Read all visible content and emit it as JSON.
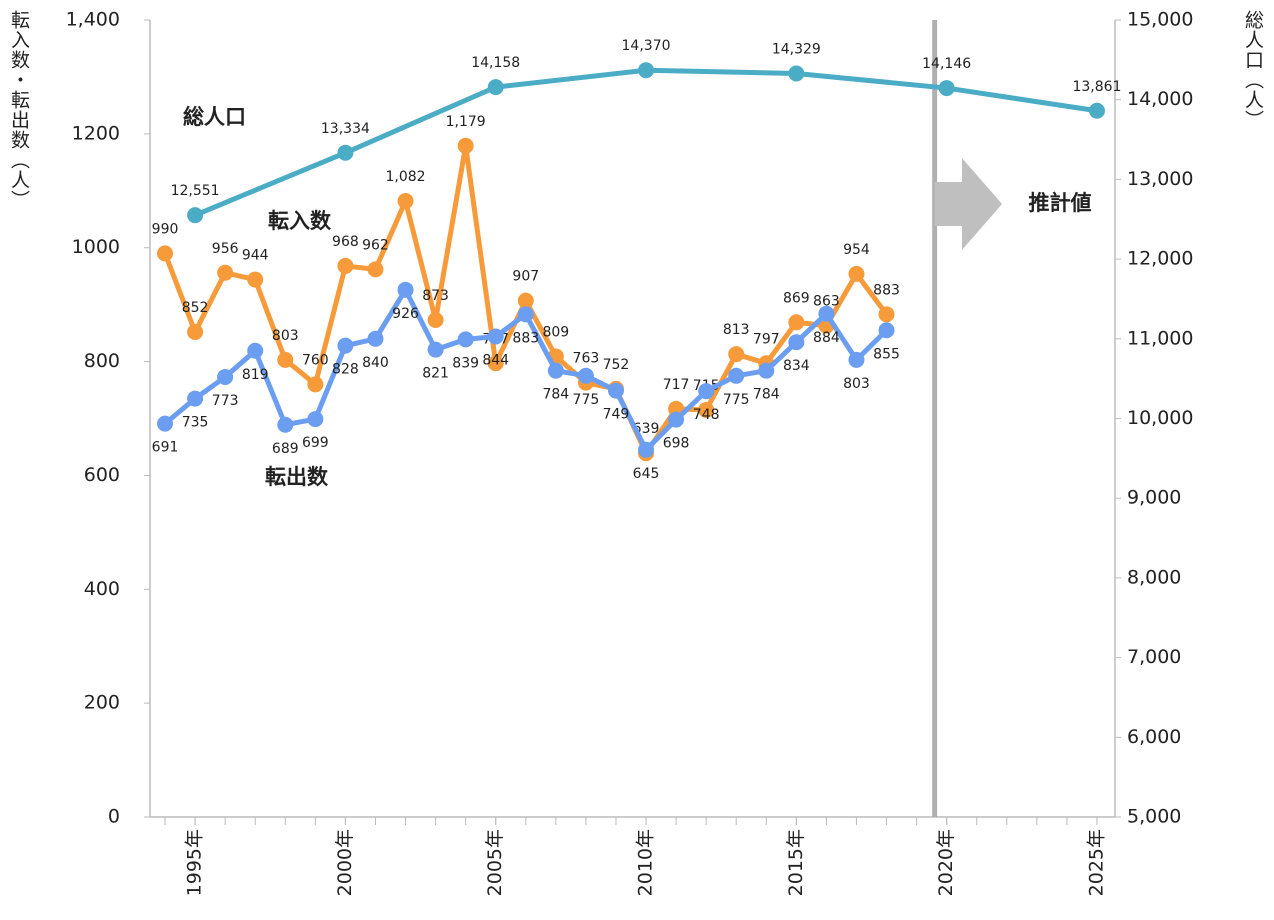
{
  "chart_data": {
    "type": "line",
    "y_label": "転入数・転出数（人）",
    "y2_label": "総人口（人）",
    "xlim": [
      1993.5,
      2025.6
    ],
    "xticks": [
      {
        "value": 1995,
        "label": "1995年"
      },
      {
        "value": 2000,
        "label": "2000年"
      },
      {
        "value": 2005,
        "label": "2005年"
      },
      {
        "value": 2010,
        "label": "2010年"
      },
      {
        "value": 2015,
        "label": "2015年"
      },
      {
        "value": 2020,
        "label": "2020年"
      },
      {
        "value": 2025,
        "label": "2025年"
      }
    ],
    "ylim": [
      0,
      1400
    ],
    "yticks": [
      0,
      200,
      400,
      600,
      800,
      1000,
      1200,
      {
        "value": 1400,
        "label": "1,400"
      }
    ],
    "y2lim": [
      5000,
      15000
    ],
    "y2ticks": [
      {
        "value": 5000,
        "label": "5,000"
      },
      {
        "value": 6000,
        "label": "6,000"
      },
      {
        "value": 7000,
        "label": "7,000"
      },
      {
        "value": 8000,
        "label": "8,000"
      },
      {
        "value": 9000,
        "label": "9,000"
      },
      {
        "value": 10000,
        "label": "10,000"
      },
      {
        "value": 11000,
        "label": "11,000"
      },
      {
        "value": 12000,
        "label": "12,000"
      },
      {
        "value": 13000,
        "label": "13,000"
      },
      {
        "value": 14000,
        "label": "14,000"
      },
      {
        "value": 15000,
        "label": "15,000"
      }
    ],
    "estimate_label": "推計値",
    "series": [
      {
        "name": "総人口",
        "color": "#4bacc6",
        "axis": "y2",
        "x": [
          1995,
          2000,
          2005,
          2010,
          2015,
          2020,
          2025
        ],
        "values": [
          12551,
          13334,
          14158,
          14370,
          14329,
          14146,
          13861
        ],
        "value_labels": [
          "12,551",
          "13,334",
          "14,158",
          "14,370",
          "14,329",
          "14,146",
          "13,861"
        ]
      },
      {
        "name": "転入数",
        "color": "#f79a3a",
        "x": [
          1994,
          1995,
          1996,
          1997,
          1998,
          1999,
          2000,
          2001,
          2002,
          2003,
          2004,
          2005,
          2006,
          2007,
          2008,
          2009,
          2010,
          2011,
          2012,
          2013,
          2014,
          2015,
          2016,
          2017,
          2018
        ],
        "values": [
          990,
          852,
          956,
          944,
          803,
          760,
          968,
          962,
          1082,
          873,
          1179,
          797,
          907,
          809,
          763,
          752,
          639,
          717,
          715,
          813,
          797,
          869,
          863,
          954,
          883
        ],
        "value_labels": [
          "990",
          "852",
          "956",
          "944",
          "803",
          "760",
          "968",
          "962",
          "1,082",
          "873",
          "1,179",
          "797",
          "907",
          "809",
          "763",
          "752",
          "639",
          "717",
          "715",
          "813",
          "797",
          "869",
          "863",
          "954",
          "883"
        ]
      },
      {
        "name": "転出数",
        "color": "#6b9ef0",
        "x": [
          1994,
          1995,
          1996,
          1997,
          1998,
          1999,
          2000,
          2001,
          2002,
          2003,
          2004,
          2005,
          2006,
          2007,
          2008,
          2009,
          2010,
          2011,
          2012,
          2013,
          2014,
          2015,
          2016,
          2017,
          2018
        ],
        "values": [
          691,
          735,
          773,
          819,
          689,
          699,
          828,
          840,
          926,
          821,
          839,
          844,
          883,
          784,
          775,
          749,
          645,
          698,
          748,
          775,
          784,
          834,
          884,
          803,
          855
        ]
      }
    ]
  }
}
